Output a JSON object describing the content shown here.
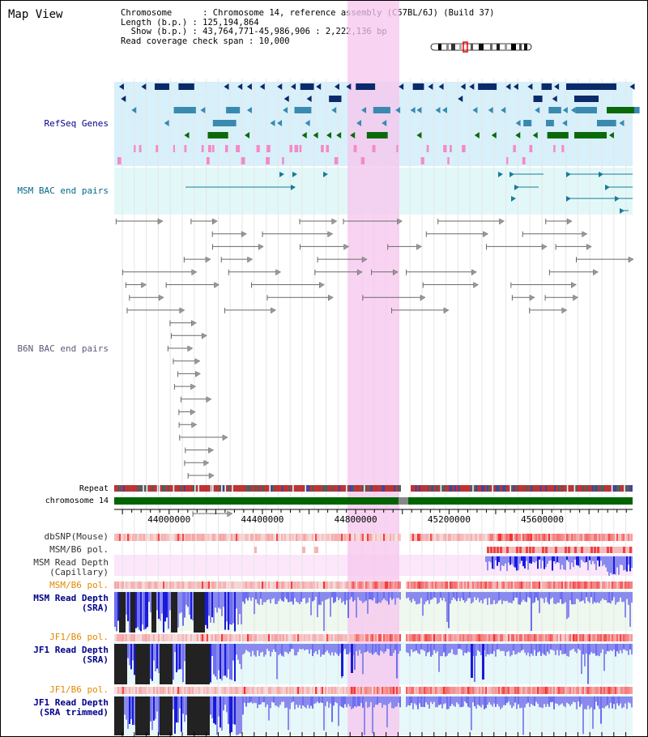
{
  "header": {
    "title": "Map View"
  },
  "info": {
    "chromosome": "Chromosome      : Chromosome 14, reference assembly (C57BL/6J) (Build 37)",
    "length": "Length (b.p.) : 125,194,864",
    "show": "  Show (b.p.) : 43,764,771-45,986,906 : 2,222,136 bp",
    "coverage": "Read coverage check span : 10,000"
  },
  "colors": {
    "refseq_label": "#00008b",
    "bac_msm_label": "#006a8a",
    "bac_b6n_label": "#5a5a7a",
    "depth_label": "#00008b",
    "pol_label": "#e08a00",
    "highlight": "#f7c6ee",
    "chrom_bar": "#006400"
  },
  "icons": [
    "chromosome-ideogram-icon",
    "centromere-marker-icon"
  ],
  "tracks": {
    "refseq": {
      "label": "RefSeq Genes"
    },
    "msm_bac": {
      "label": "MSM BAC end pairs"
    },
    "b6n_bac": {
      "label": "B6N BAC end pairs"
    },
    "repeat": {
      "label": "Repeat"
    },
    "chrom": {
      "label": "chromosome 14"
    },
    "dbsnp": {
      "label": "dbSNP(Mouse)"
    },
    "msm_pol_a": {
      "label": "MSM/B6 pol."
    },
    "msm_cap": {
      "label1": "MSM Read Depth",
      "label2": "(Capillary)"
    },
    "msm_pol_b": {
      "label": "MSM/B6 pol."
    },
    "msm_sra": {
      "label1": "MSM Read Depth",
      "label2": "(SRA)"
    },
    "jf1_pol_a": {
      "label": "JF1/B6 pol."
    },
    "jf1_sra": {
      "label1": "JF1 Read Depth",
      "label2": "(SRA)"
    },
    "jf1_pol_b": {
      "label": "JF1/B6 pol."
    },
    "jf1_trim": {
      "label1": "JF1 Read Depth",
      "label2": "(SRA trimmed)"
    }
  },
  "ruler": {
    "ticks": [
      {
        "bp": 44000000,
        "label": "44000000"
      },
      {
        "bp": 44400000,
        "label": "44400000"
      },
      {
        "bp": 44800000,
        "label": "44800000"
      },
      {
        "bp": 45200000,
        "label": "45200000"
      },
      {
        "bp": 45600000,
        "label": "45600000"
      }
    ]
  }
}
